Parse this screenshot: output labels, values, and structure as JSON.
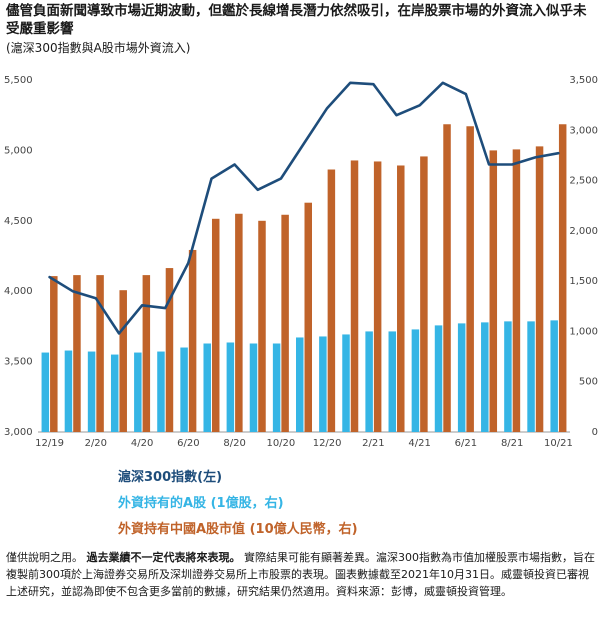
{
  "title": "儘管負面新聞導致市場近期波動，但鑑於長線增長潛力依然吸引，在岸股票市場的外資流入似乎未受嚴重影響",
  "subtitle": "(滬深300指數與A股市場外資流入)",
  "colors": {
    "index_line": "#1e4d7b",
    "shares_bar": "#35b5e5",
    "value_bar": "#c0632a"
  },
  "legend": [
    {
      "label": "滬深300指數(左)",
      "color": "#1e4d7b"
    },
    {
      "label": "外資持有的A股 (1億股，右)",
      "color": "#35b5e5"
    },
    {
      "label": "外資持有中國A股市值 (10億人民幣，右)",
      "color": "#c0632a"
    }
  ],
  "note": {
    "intro": "僅供說明之用。",
    "bold": "過去業績不一定代表將來表現。",
    "rest": "實際結果可能有顯著差異。滬深300指數為市值加權股票市場指數，旨在複製前300項於上海證券交易所及深圳證券交易所上市股票的表現。圖表數據截至2021年10月31日。威靈頓投資已審視上述研究，並認為即使不包含更多當前的數據，研究結果仍然適用。資料來源：彭博，威靈頓投資管理。"
  },
  "chart_data": {
    "type": "bar",
    "x_tick_labels": [
      "12/19",
      "2/20",
      "4/20",
      "6/20",
      "8/20",
      "10/20",
      "12/20",
      "2/21",
      "4/21",
      "6/21",
      "8/21",
      "10/21"
    ],
    "categories": [
      "12/19",
      "1/20",
      "2/20",
      "3/20",
      "4/20",
      "5/20",
      "6/20",
      "7/20",
      "8/20",
      "9/20",
      "10/20",
      "11/20",
      "12/20",
      "1/21",
      "2/21",
      "3/21",
      "4/21",
      "5/21",
      "6/21",
      "7/21",
      "8/21",
      "9/21",
      "10/21"
    ],
    "y_left": {
      "lim": [
        3000,
        5500
      ],
      "ticks": [
        3000,
        3500,
        4000,
        4500,
        5000,
        5500
      ],
      "tick_labels": [
        "3,000",
        "3,500",
        "4,000",
        "4,500",
        "5,000",
        "5,500"
      ]
    },
    "y_right": {
      "lim": [
        0,
        3500
      ],
      "ticks": [
        0,
        500,
        1000,
        1500,
        2000,
        2500,
        3000,
        3500
      ],
      "tick_labels": [
        "0",
        "500",
        "1,000",
        "1,500",
        "2,000",
        "2,500",
        "3,000",
        "3,500"
      ]
    },
    "series": [
      {
        "name": "外資持有中國A股市值 (10億人民幣，右)",
        "type": "bar",
        "axis": "right",
        "color": "#c0632a",
        "values": [
          1550,
          1560,
          1560,
          1410,
          1560,
          1630,
          1810,
          2120,
          2170,
          2100,
          2160,
          2280,
          2610,
          2700,
          2690,
          2650,
          2740,
          3060,
          3040,
          2800,
          2810,
          2840,
          3060
        ]
      },
      {
        "name": "外資持有的A股 (1億股，右)",
        "type": "bar",
        "axis": "right",
        "color": "#35b5e5",
        "values": [
          790,
          810,
          800,
          770,
          790,
          800,
          840,
          880,
          890,
          880,
          880,
          940,
          950,
          970,
          1000,
          1000,
          1020,
          1060,
          1080,
          1090,
          1100,
          1100,
          1110
        ]
      },
      {
        "name": "滬深300指數(左)",
        "type": "line",
        "axis": "left",
        "color": "#1e4d7b",
        "values": [
          4100,
          4000,
          3950,
          3700,
          3900,
          3880,
          4200,
          4800,
          4900,
          4720,
          4800,
          5050,
          5300,
          5480,
          5470,
          5250,
          5320,
          5480,
          5400,
          4900,
          4900,
          4950,
          4980
        ]
      }
    ]
  }
}
